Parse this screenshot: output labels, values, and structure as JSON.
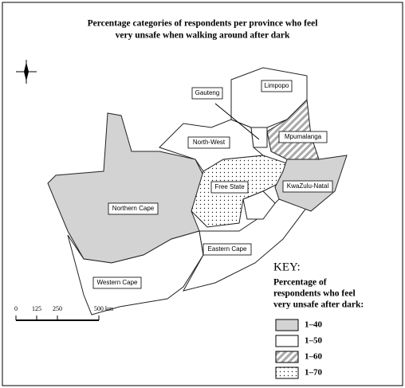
{
  "title": [
    "Percentage categories of respondents per province who feel",
    "very unsafe when walking around after dark"
  ],
  "provinces": [
    "Limpopo",
    "Gauteng",
    "North-West",
    "Mpumalanga",
    "Free State",
    "KwaZulu-Natal",
    "Northern Cape",
    "Eastern Cape",
    "Western Cape"
  ],
  "key": {
    "title": "KEY:",
    "subtitle": [
      "Percentage of",
      "respondents who feel",
      "very unsafe after dark:"
    ],
    "items": [
      "1–40",
      "1–50",
      "1–60",
      "1–70"
    ]
  },
  "scale": {
    "labels": [
      "0",
      "125",
      "250",
      "500 km"
    ]
  }
}
